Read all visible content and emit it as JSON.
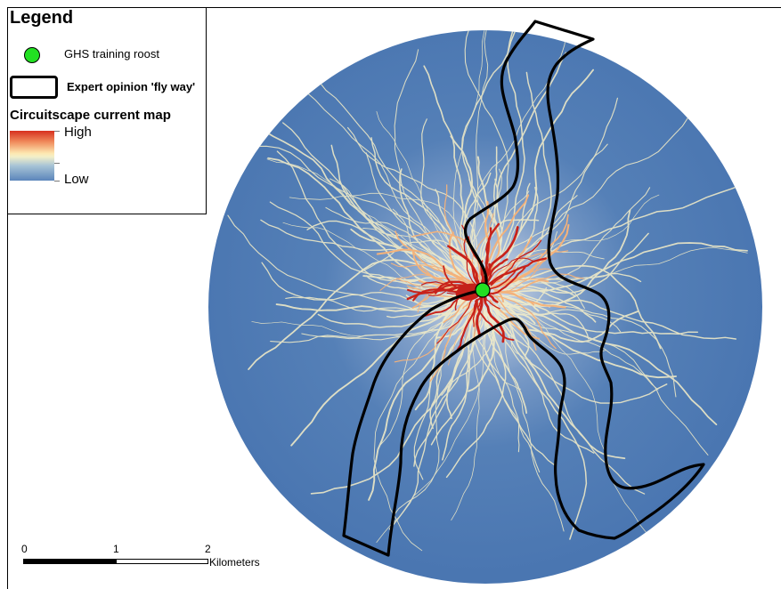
{
  "legend": {
    "title": "Legend",
    "roost_label": "GHS training roost",
    "flyway_label": "Expert opinion 'fly way'",
    "current_title": "Circuitscape current map",
    "high_label": "High",
    "low_label": "Low"
  },
  "scalebar": {
    "ticks": [
      "0",
      "1",
      "2"
    ],
    "unit": "Kilometers"
  },
  "colors": {
    "background_low": "#4a78b3",
    "current_mid": "#fdf4c4",
    "current_high": "#d7301f",
    "roost": "#22e022",
    "flyway_outline": "#000000"
  },
  "icons": [
    "roost-point-icon",
    "flyway-polygon-icon",
    "current-color-ramp"
  ]
}
